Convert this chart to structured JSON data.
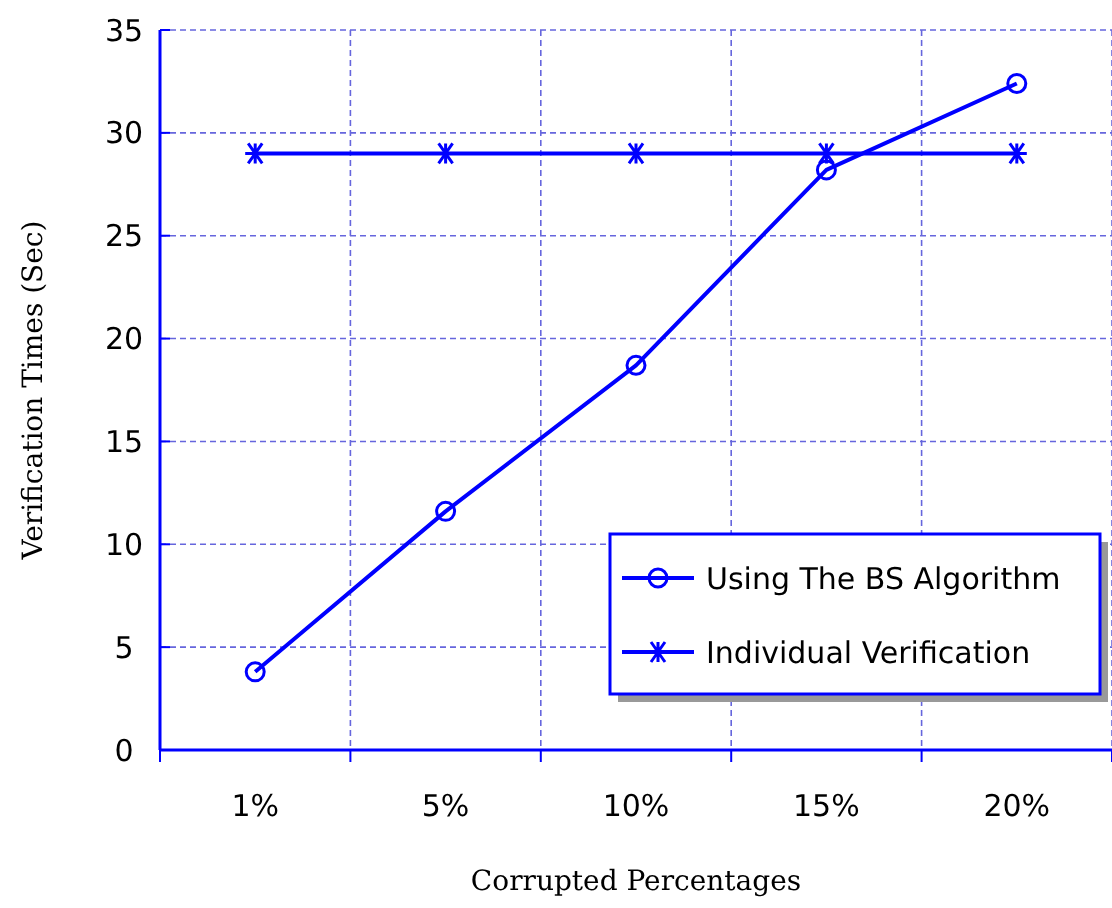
{
  "chart_data": {
    "type": "line",
    "xlabel": "Corrupted Percentages",
    "ylabel": "Verification Times (Sec)",
    "categories": [
      "1%",
      "5%",
      "10%",
      "15%",
      "20%"
    ],
    "series": [
      {
        "name": "Using The BS Algorithm",
        "color": "#0000ff",
        "marker": "circle",
        "values": [
          3.8,
          11.6,
          18.7,
          28.2,
          32.4
        ]
      },
      {
        "name": "Individual Verification",
        "color": "#0000ff",
        "marker": "cross",
        "values": [
          29,
          29,
          29,
          29,
          29
        ]
      }
    ],
    "ylim": [
      0,
      35
    ],
    "yticks": [
      0,
      5,
      10,
      15,
      20,
      25,
      30,
      35
    ],
    "grid": true,
    "legend": "bottom right",
    "line_style": "solid"
  }
}
